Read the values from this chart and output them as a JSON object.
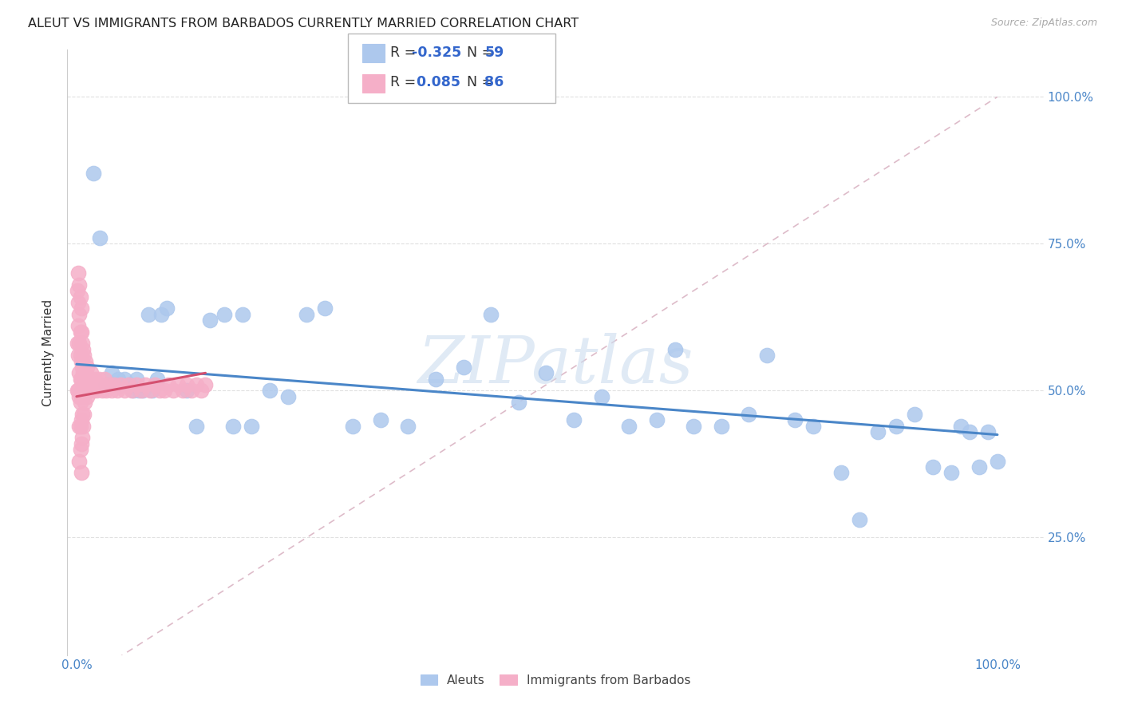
{
  "title": "ALEUT VS IMMIGRANTS FROM BARBADOS CURRENTLY MARRIED CORRELATION CHART",
  "source": "Source: ZipAtlas.com",
  "ylabel": "Currently Married",
  "ytick_labels": [
    "25.0%",
    "50.0%",
    "75.0%",
    "100.0%"
  ],
  "ytick_values": [
    0.25,
    0.5,
    0.75,
    1.0
  ],
  "xlim": [
    -0.01,
    1.05
  ],
  "ylim": [
    0.05,
    1.08
  ],
  "aleut_color": "#adc8ed",
  "barbados_color": "#f5afc8",
  "aleut_edge": "#adc8ed",
  "barbados_edge": "#f5afc8",
  "trendline_aleut_color": "#4a86c8",
  "trendline_barbados_color": "#d45070",
  "diagonal_color": "#d8b0c0",
  "background_color": "#ffffff",
  "grid_color": "#e0e0e0",
  "watermark_color": "#ccddef",
  "aleut_x": [
    0.018,
    0.025,
    0.032,
    0.038,
    0.045,
    0.048,
    0.052,
    0.058,
    0.062,
    0.065,
    0.068,
    0.072,
    0.078,
    0.082,
    0.088,
    0.092,
    0.098,
    0.12,
    0.13,
    0.145,
    0.16,
    0.17,
    0.18,
    0.19,
    0.21,
    0.23,
    0.25,
    0.27,
    0.3,
    0.33,
    0.36,
    0.39,
    0.42,
    0.45,
    0.48,
    0.51,
    0.54,
    0.57,
    0.6,
    0.63,
    0.65,
    0.67,
    0.7,
    0.73,
    0.75,
    0.78,
    0.8,
    0.83,
    0.85,
    0.87,
    0.89,
    0.91,
    0.93,
    0.95,
    0.96,
    0.97,
    0.98,
    0.99,
    1.0
  ],
  "aleut_y": [
    0.87,
    0.76,
    0.51,
    0.53,
    0.52,
    0.51,
    0.52,
    0.51,
    0.5,
    0.52,
    0.5,
    0.5,
    0.63,
    0.5,
    0.52,
    0.63,
    0.64,
    0.5,
    0.44,
    0.62,
    0.63,
    0.44,
    0.63,
    0.44,
    0.5,
    0.49,
    0.63,
    0.64,
    0.44,
    0.45,
    0.44,
    0.52,
    0.54,
    0.63,
    0.48,
    0.53,
    0.45,
    0.49,
    0.44,
    0.45,
    0.57,
    0.44,
    0.44,
    0.46,
    0.56,
    0.45,
    0.44,
    0.36,
    0.28,
    0.43,
    0.44,
    0.46,
    0.37,
    0.36,
    0.44,
    0.43,
    0.37,
    0.43,
    0.38
  ],
  "barbados_x": [
    0.001,
    0.001,
    0.001,
    0.002,
    0.002,
    0.002,
    0.002,
    0.002,
    0.003,
    0.003,
    0.003,
    0.003,
    0.003,
    0.003,
    0.003,
    0.004,
    0.004,
    0.004,
    0.004,
    0.004,
    0.004,
    0.004,
    0.005,
    0.005,
    0.005,
    0.005,
    0.005,
    0.005,
    0.005,
    0.005,
    0.006,
    0.006,
    0.006,
    0.006,
    0.006,
    0.007,
    0.007,
    0.007,
    0.007,
    0.008,
    0.008,
    0.008,
    0.009,
    0.009,
    0.01,
    0.01,
    0.011,
    0.011,
    0.012,
    0.013,
    0.014,
    0.015,
    0.016,
    0.017,
    0.018,
    0.02,
    0.022,
    0.024,
    0.026,
    0.028,
    0.03,
    0.032,
    0.035,
    0.038,
    0.041,
    0.044,
    0.048,
    0.052,
    0.056,
    0.06,
    0.065,
    0.07,
    0.075,
    0.08,
    0.085,
    0.09,
    0.095,
    0.1,
    0.105,
    0.11,
    0.115,
    0.12,
    0.125,
    0.13,
    0.135,
    0.14
  ],
  "barbados_y": [
    0.67,
    0.58,
    0.5,
    0.7,
    0.65,
    0.61,
    0.56,
    0.5,
    0.68,
    0.63,
    0.58,
    0.53,
    0.49,
    0.44,
    0.38,
    0.66,
    0.6,
    0.56,
    0.52,
    0.48,
    0.44,
    0.4,
    0.64,
    0.6,
    0.55,
    0.52,
    0.49,
    0.45,
    0.41,
    0.36,
    0.58,
    0.54,
    0.5,
    0.46,
    0.42,
    0.57,
    0.53,
    0.49,
    0.44,
    0.56,
    0.51,
    0.46,
    0.53,
    0.48,
    0.55,
    0.5,
    0.54,
    0.49,
    0.52,
    0.5,
    0.52,
    0.51,
    0.53,
    0.51,
    0.5,
    0.52,
    0.5,
    0.52,
    0.51,
    0.5,
    0.52,
    0.5,
    0.51,
    0.5,
    0.51,
    0.5,
    0.51,
    0.5,
    0.51,
    0.5,
    0.51,
    0.5,
    0.51,
    0.5,
    0.51,
    0.5,
    0.5,
    0.51,
    0.5,
    0.51,
    0.5,
    0.51,
    0.5,
    0.51,
    0.5,
    0.51
  ],
  "aleut_trendline_x0": 0.0,
  "aleut_trendline_x1": 1.0,
  "aleut_trendline_y0": 0.545,
  "aleut_trendline_y1": 0.425,
  "barbados_trendline_x0": 0.0,
  "barbados_trendline_x1": 0.14,
  "barbados_trendline_y0": 0.49,
  "barbados_trendline_y1": 0.53
}
